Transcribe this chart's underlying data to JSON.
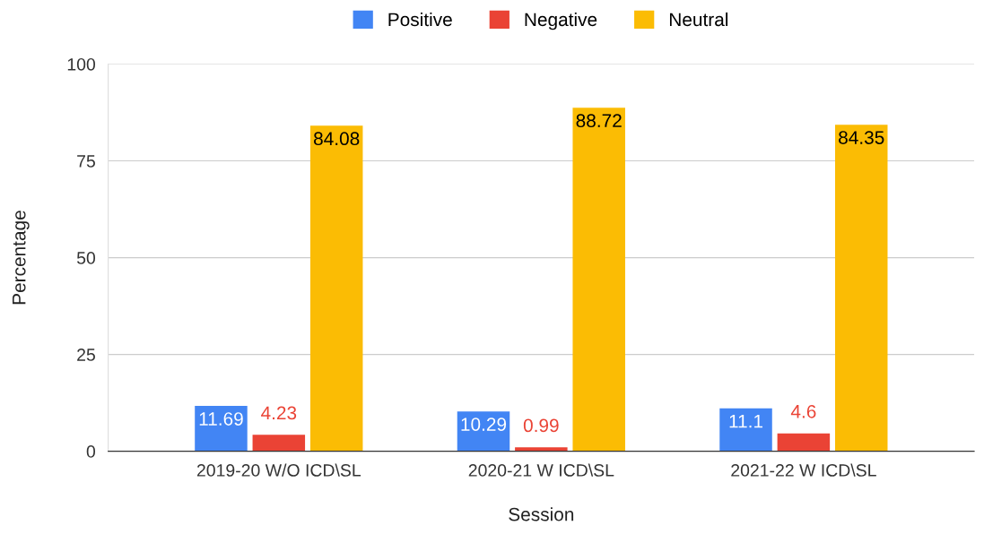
{
  "chart_data": {
    "type": "bar",
    "xlabel": "Session",
    "ylabel": "Percentage",
    "categories": [
      "2019-20 W/O ICD\\SL",
      "2020-21 W ICD\\SL",
      "2021-22 W ICD\\SL"
    ],
    "series": [
      {
        "name": "Positive",
        "color": "#4285f4",
        "values": [
          11.69,
          10.29,
          11.1
        ]
      },
      {
        "name": "Negative",
        "color": "#ea4335",
        "values": [
          4.23,
          0.99,
          4.6
        ]
      },
      {
        "name": "Neutral",
        "color": "#fbbc04",
        "values": [
          84.08,
          88.72,
          84.35
        ]
      }
    ],
    "ylim": [
      0,
      100
    ],
    "yticks": [
      0,
      25,
      50,
      75,
      100
    ],
    "grid": "y",
    "legend": "top",
    "data_labels": true
  }
}
